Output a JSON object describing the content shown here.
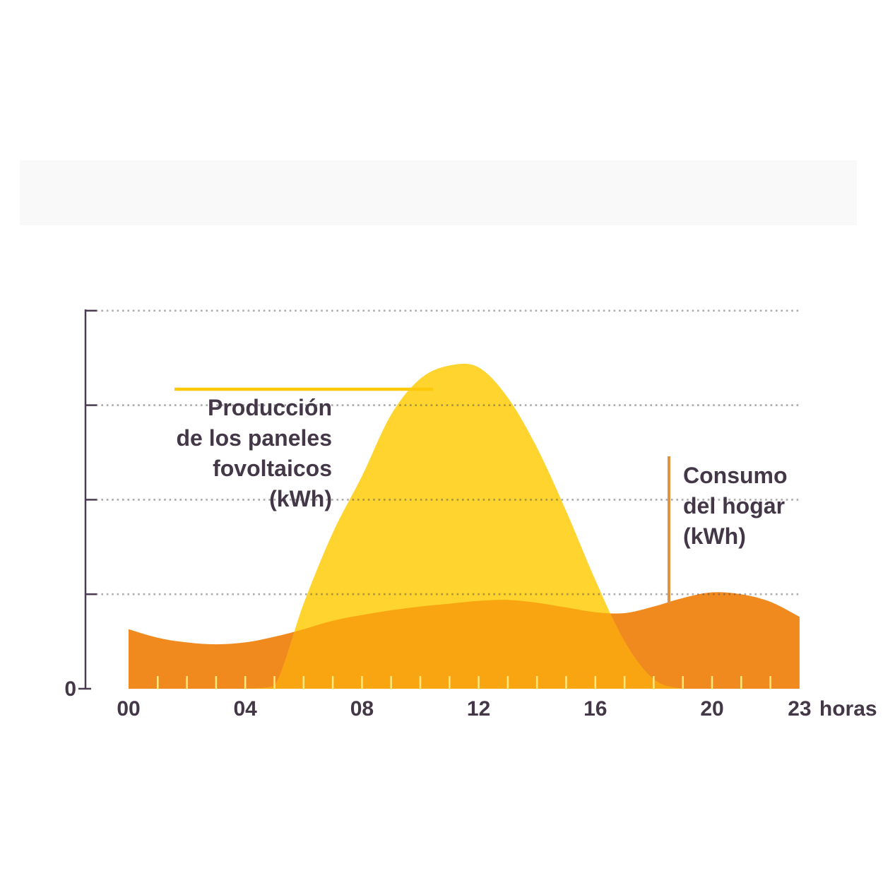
{
  "chart_data": {
    "type": "area",
    "title": "",
    "xlabel": "horas",
    "ylabel": "",
    "y_zero_label": "0",
    "x": [
      0,
      1,
      2,
      3,
      4,
      5,
      6,
      7,
      8,
      9,
      10,
      11,
      12,
      13,
      14,
      15,
      16,
      17,
      18,
      19,
      20,
      21,
      22,
      23
    ],
    "x_tick_labels": [
      "00",
      "04",
      "08",
      "12",
      "16",
      "20",
      "23"
    ],
    "x_tick_hours": [
      0,
      4,
      8,
      12,
      16,
      20,
      23
    ],
    "ylim": [
      0,
      4
    ],
    "grid": "dotted-horizontal",
    "series": [
      {
        "name": "Producción de los paneles fovoltaicos (kWh)",
        "color": "#FFD42E",
        "values": [
          0,
          0,
          0,
          0,
          0,
          0.03,
          0.9,
          1.65,
          2.25,
          2.9,
          3.28,
          3.42,
          3.4,
          3.08,
          2.55,
          1.88,
          1.15,
          0.5,
          0.1,
          0,
          0,
          0,
          0,
          0
        ]
      },
      {
        "name": "Consumo del hogar (kWh)",
        "color": "#F18A1E",
        "values": [
          0.63,
          0.54,
          0.49,
          0.47,
          0.49,
          0.55,
          0.63,
          0.72,
          0.78,
          0.83,
          0.87,
          0.9,
          0.93,
          0.94,
          0.91,
          0.86,
          0.81,
          0.8,
          0.87,
          0.96,
          1.02,
          1.0,
          0.92,
          0.76
        ]
      }
    ],
    "overlap_color": "#F9A511",
    "hour_tick_color": "#FFE87D",
    "gridline_color": "rgba(75,70,75,0.45)",
    "axis_color": "#4A3B50",
    "text_color": "#443848"
  },
  "labels": {
    "production_lines": [
      "Producción",
      "de los paneles",
      "fovoltaicos",
      "(kWh)"
    ],
    "consumption_lines": [
      "Consumo",
      "del hogar",
      "(kWh)"
    ],
    "production_callout_color": "#FFC808",
    "consumption_callout_color": "#E2913F"
  }
}
